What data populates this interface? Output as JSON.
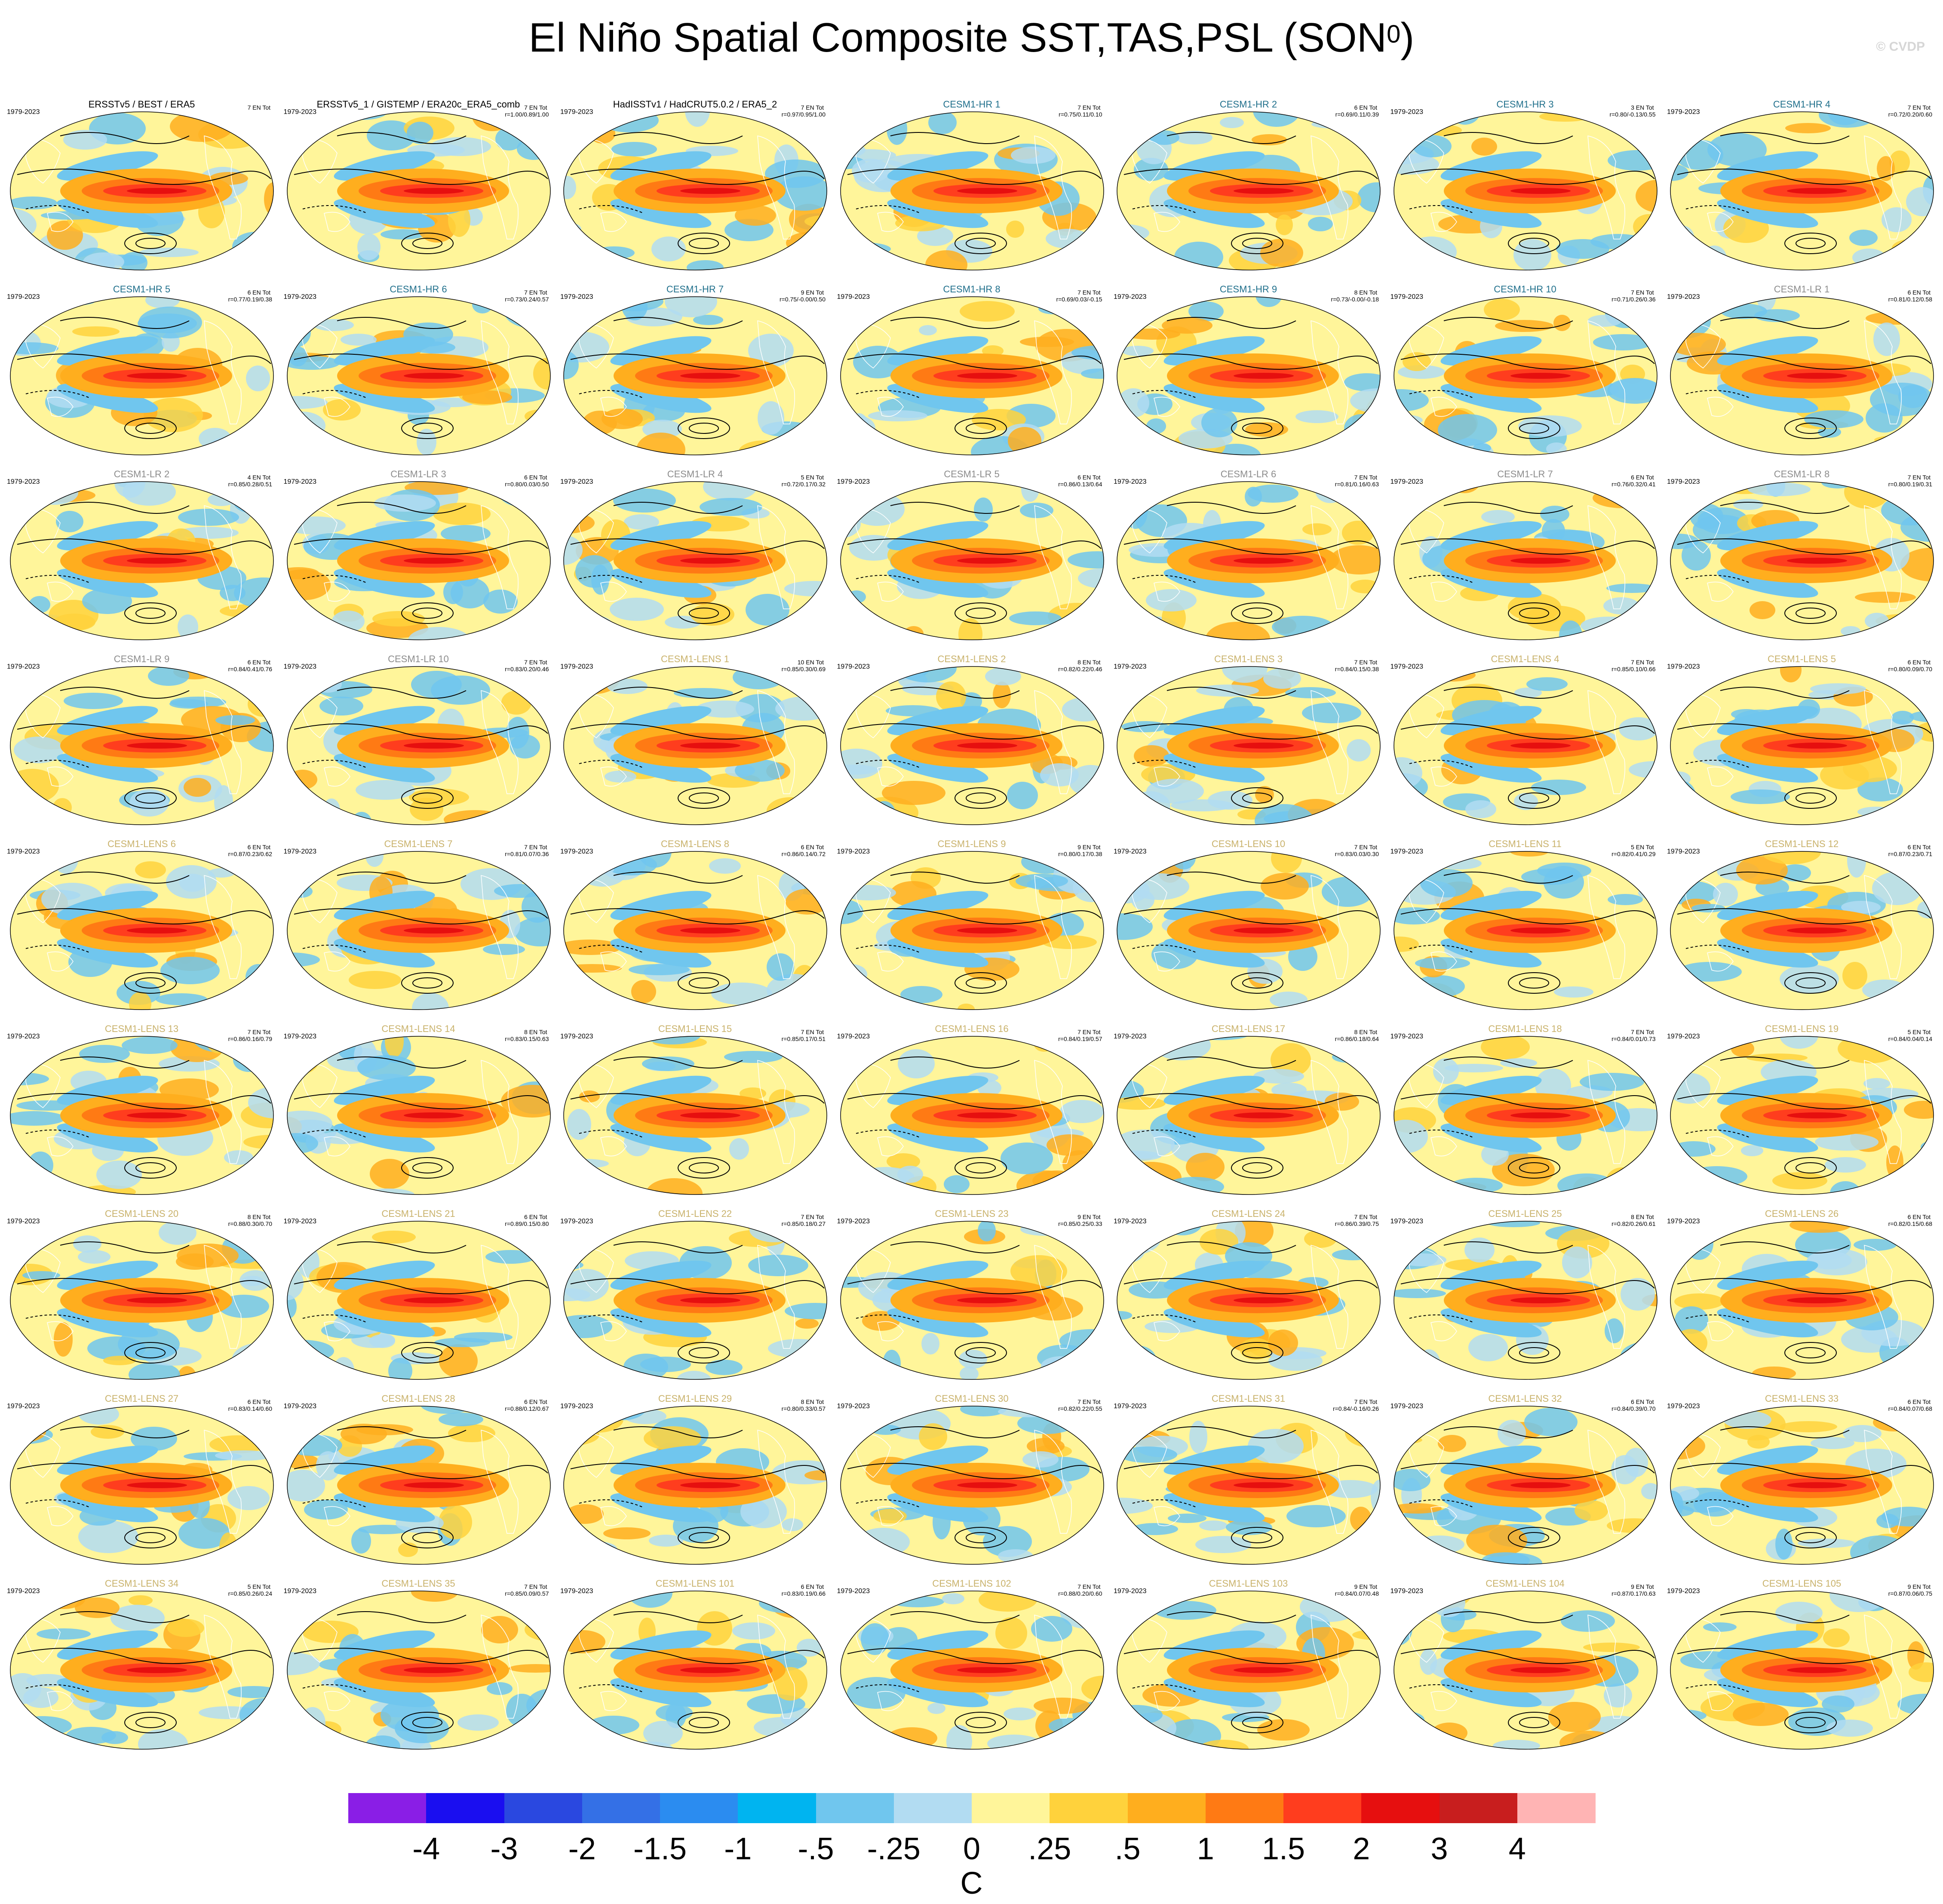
{
  "title": {
    "main": "El Niño Spatial Composite SST,TAS,PSL (SON",
    "superscript": "0",
    "close": ")"
  },
  "watermark": "© CVDP",
  "colors": {
    "obs_title": "#000000",
    "hr_title": "#1f6f8b",
    "lr_title": "#8c8c8c",
    "lens_title": "#c9b26b",
    "land_outline": "#ffffff",
    "contour": "#000000"
  },
  "panels": [
    {
      "title": "ERSSTv5 / BEST / ERA5",
      "years": "1979-2023",
      "count": "7 EN Tot",
      "corr": "",
      "group": "obs"
    },
    {
      "title": "ERSSTv5_1 / GISTEMP / ERA20c_ERA5_comb",
      "years": "1979-2023",
      "count": "7 EN Tot",
      "corr": "r=1.00/0.89/1.00",
      "group": "obs"
    },
    {
      "title": "HadISSTv1 / HadCRUT5.0.2 / ERA5_2",
      "years": "1979-2023",
      "count": "7 EN Tot",
      "corr": "r=0.97/0.95/1.00",
      "group": "obs"
    },
    {
      "title": "CESM1-HR 1",
      "years": "",
      "count": "7 EN Tot",
      "corr": "r=0.75/0.11/0.10",
      "group": "hr"
    },
    {
      "title": "CESM1-HR 2",
      "years": "",
      "count": "6 EN Tot",
      "corr": "r=0.69/0.11/0.39",
      "group": "hr"
    },
    {
      "title": "CESM1-HR 3",
      "years": "1979-2023",
      "count": "3 EN Tot",
      "corr": "r=0.80/-0.13/0.55",
      "group": "hr"
    },
    {
      "title": "CESM1-HR 4",
      "years": "1979-2023",
      "count": "7 EN Tot",
      "corr": "r=0.72/0.20/0.60",
      "group": "hr"
    },
    {
      "title": "CESM1-HR 5",
      "years": "1979-2023",
      "count": "6 EN Tot",
      "corr": "r=0.77/0.19/0.38",
      "group": "hr"
    },
    {
      "title": "CESM1-HR 6",
      "years": "1979-2023",
      "count": "7 EN Tot",
      "corr": "r=0.73/0.24/0.57",
      "group": "hr"
    },
    {
      "title": "CESM1-HR 7",
      "years": "1979-2023",
      "count": "9 EN Tot",
      "corr": "r=0.75/-0.00/0.50",
      "group": "hr"
    },
    {
      "title": "CESM1-HR 8",
      "years": "1979-2023",
      "count": "7 EN Tot",
      "corr": "r=0.69/0.03/-0.15",
      "group": "hr"
    },
    {
      "title": "CESM1-HR 9",
      "years": "1979-2023",
      "count": "8 EN Tot",
      "corr": "r=0.73/-0.00/-0.18",
      "group": "hr"
    },
    {
      "title": "CESM1-HR 10",
      "years": "1979-2023",
      "count": "7 EN Tot",
      "corr": "r=0.71/0.26/0.36",
      "group": "hr"
    },
    {
      "title": "CESM1-LR 1",
      "years": "1979-2023",
      "count": "6 EN Tot",
      "corr": "r=0.81/0.12/0.58",
      "group": "lr"
    },
    {
      "title": "CESM1-LR 2",
      "years": "1979-2023",
      "count": "4 EN Tot",
      "corr": "r=0.85/0.28/0.51",
      "group": "lr"
    },
    {
      "title": "CESM1-LR 3",
      "years": "1979-2023",
      "count": "6 EN Tot",
      "corr": "r=0.80/0.03/0.50",
      "group": "lr"
    },
    {
      "title": "CESM1-LR 4",
      "years": "1979-2023",
      "count": "5 EN Tot",
      "corr": "r=0.72/0.17/0.32",
      "group": "lr"
    },
    {
      "title": "CESM1-LR 5",
      "years": "1979-2023",
      "count": "6 EN Tot",
      "corr": "r=0.86/0.13/0.64",
      "group": "lr"
    },
    {
      "title": "CESM1-LR 6",
      "years": "1979-2023",
      "count": "7 EN Tot",
      "corr": "r=0.81/0.16/0.63",
      "group": "lr"
    },
    {
      "title": "CESM1-LR 7",
      "years": "1979-2023",
      "count": "6 EN Tot",
      "corr": "r=0.76/0.32/0.41",
      "group": "lr"
    },
    {
      "title": "CESM1-LR 8",
      "years": "1979-2023",
      "count": "7 EN Tot",
      "corr": "r=0.80/0.19/0.31",
      "group": "lr"
    },
    {
      "title": "CESM1-LR 9",
      "years": "1979-2023",
      "count": "6 EN Tot",
      "corr": "r=0.84/0.41/0.76",
      "group": "lr"
    },
    {
      "title": "CESM1-LR 10",
      "years": "1979-2023",
      "count": "7 EN Tot",
      "corr": "r=0.83/0.20/0.46",
      "group": "lr"
    },
    {
      "title": "CESM1-LENS 1",
      "years": "1979-2023",
      "count": "10 EN Tot",
      "corr": "r=0.85/0.30/0.69",
      "group": "lens"
    },
    {
      "title": "CESM1-LENS 2",
      "years": "1979-2023",
      "count": "8 EN Tot",
      "corr": "r=0.82/0.22/0.46",
      "group": "lens"
    },
    {
      "title": "CESM1-LENS 3",
      "years": "1979-2023",
      "count": "7 EN Tot",
      "corr": "r=0.84/0.15/0.38",
      "group": "lens"
    },
    {
      "title": "CESM1-LENS 4",
      "years": "1979-2023",
      "count": "7 EN Tot",
      "corr": "r=0.85/0.10/0.66",
      "group": "lens"
    },
    {
      "title": "CESM1-LENS 5",
      "years": "1979-2023",
      "count": "6 EN Tot",
      "corr": "r=0.80/0.09/0.70",
      "group": "lens"
    },
    {
      "title": "CESM1-LENS 6",
      "years": "1979-2023",
      "count": "6 EN Tot",
      "corr": "r=0.87/0.23/0.62",
      "group": "lens"
    },
    {
      "title": "CESM1-LENS 7",
      "years": "1979-2023",
      "count": "7 EN Tot",
      "corr": "r=0.81/0.07/0.36",
      "group": "lens"
    },
    {
      "title": "CESM1-LENS 8",
      "years": "1979-2023",
      "count": "6 EN Tot",
      "corr": "r=0.86/0.14/0.72",
      "group": "lens"
    },
    {
      "title": "CESM1-LENS 9",
      "years": "1979-2023",
      "count": "9 EN Tot",
      "corr": "r=0.80/0.17/0.38",
      "group": "lens"
    },
    {
      "title": "CESM1-LENS 10",
      "years": "1979-2023",
      "count": "7 EN Tot",
      "corr": "r=0.83/0.03/0.30",
      "group": "lens"
    },
    {
      "title": "CESM1-LENS 11",
      "years": "1979-2023",
      "count": "5 EN Tot",
      "corr": "r=0.82/0.41/0.29",
      "group": "lens"
    },
    {
      "title": "CESM1-LENS 12",
      "years": "1979-2023",
      "count": "6 EN Tot",
      "corr": "r=0.87/0.23/0.71",
      "group": "lens"
    },
    {
      "title": "CESM1-LENS 13",
      "years": "1979-2023",
      "count": "7 EN Tot",
      "corr": "r=0.86/0.16/0.79",
      "group": "lens"
    },
    {
      "title": "CESM1-LENS 14",
      "years": "1979-2023",
      "count": "8 EN Tot",
      "corr": "r=0.83/0.15/0.63",
      "group": "lens"
    },
    {
      "title": "CESM1-LENS 15",
      "years": "1979-2023",
      "count": "7 EN Tot",
      "corr": "r=0.85/0.17/0.51",
      "group": "lens"
    },
    {
      "title": "CESM1-LENS 16",
      "years": "1979-2023",
      "count": "7 EN Tot",
      "corr": "r=0.84/0.19/0.57",
      "group": "lens"
    },
    {
      "title": "CESM1-LENS 17",
      "years": "1979-2023",
      "count": "8 EN Tot",
      "corr": "r=0.86/0.18/0.64",
      "group": "lens"
    },
    {
      "title": "CESM1-LENS 18",
      "years": "1979-2023",
      "count": "7 EN Tot",
      "corr": "r=0.84/0.01/0.73",
      "group": "lens"
    },
    {
      "title": "CESM1-LENS 19",
      "years": "1979-2023",
      "count": "5 EN Tot",
      "corr": "r=0.84/0.04/0.14",
      "group": "lens"
    },
    {
      "title": "CESM1-LENS 20",
      "years": "1979-2023",
      "count": "8 EN Tot",
      "corr": "r=0.88/0.30/0.70",
      "group": "lens"
    },
    {
      "title": "CESM1-LENS 21",
      "years": "1979-2023",
      "count": "6 EN Tot",
      "corr": "r=0.89/0.15/0.80",
      "group": "lens"
    },
    {
      "title": "CESM1-LENS 22",
      "years": "1979-2023",
      "count": "7 EN Tot",
      "corr": "r=0.85/0.18/0.27",
      "group": "lens"
    },
    {
      "title": "CESM1-LENS 23",
      "years": "1979-2023",
      "count": "9 EN Tot",
      "corr": "r=0.85/0.25/0.33",
      "group": "lens"
    },
    {
      "title": "CESM1-LENS 24",
      "years": "1979-2023",
      "count": "7 EN Tot",
      "corr": "r=0.86/0.39/0.75",
      "group": "lens"
    },
    {
      "title": "CESM1-LENS 25",
      "years": "1979-2023",
      "count": "8 EN Tot",
      "corr": "r=0.82/0.26/0.61",
      "group": "lens"
    },
    {
      "title": "CESM1-LENS 26",
      "years": "1979-2023",
      "count": "6 EN Tot",
      "corr": "r=0.82/0.15/0.68",
      "group": "lens"
    },
    {
      "title": "CESM1-LENS 27",
      "years": "1979-2023",
      "count": "6 EN Tot",
      "corr": "r=0.83/0.14/0.60",
      "group": "lens"
    },
    {
      "title": "CESM1-LENS 28",
      "years": "1979-2023",
      "count": "6 EN Tot",
      "corr": "r=0.88/0.12/0.67",
      "group": "lens"
    },
    {
      "title": "CESM1-LENS 29",
      "years": "1979-2023",
      "count": "8 EN Tot",
      "corr": "r=0.80/0.33/0.57",
      "group": "lens"
    },
    {
      "title": "CESM1-LENS 30",
      "years": "1979-2023",
      "count": "7 EN Tot",
      "corr": "r=0.82/0.22/0.55",
      "group": "lens"
    },
    {
      "title": "CESM1-LENS 31",
      "years": "1979-2023",
      "count": "7 EN Tot",
      "corr": "r=0.84/-0.16/0.26",
      "group": "lens"
    },
    {
      "title": "CESM1-LENS 32",
      "years": "1979-2023",
      "count": "6 EN Tot",
      "corr": "r=0.84/0.39/0.70",
      "group": "lens"
    },
    {
      "title": "CESM1-LENS 33",
      "years": "1979-2023",
      "count": "6 EN Tot",
      "corr": "r=0.84/0.07/0.68",
      "group": "lens"
    },
    {
      "title": "CESM1-LENS 34",
      "years": "1979-2023",
      "count": "5 EN Tot",
      "corr": "r=0.85/0.26/0.24",
      "group": "lens"
    },
    {
      "title": "CESM1-LENS 35",
      "years": "1979-2023",
      "count": "7 EN Tot",
      "corr": "r=0.85/0.09/0.57",
      "group": "lens"
    },
    {
      "title": "CESM1-LENS 101",
      "years": "1979-2023",
      "count": "6 EN Tot",
      "corr": "r=0.83/0.19/0.66",
      "group": "lens"
    },
    {
      "title": "CESM1-LENS 102",
      "years": "1979-2023",
      "count": "7 EN Tot",
      "corr": "r=0.88/0.20/0.60",
      "group": "lens"
    },
    {
      "title": "CESM1-LENS 103",
      "years": "1979-2023",
      "count": "9 EN Tot",
      "corr": "r=0.84/0.07/0.48",
      "group": "lens"
    },
    {
      "title": "CESM1-LENS 104",
      "years": "1979-2023",
      "count": "9 EN Tot",
      "corr": "r=0.87/0.17/0.63",
      "group": "lens"
    },
    {
      "title": "CESM1-LENS 105",
      "years": "1979-2023",
      "count": "9 EN Tot",
      "corr": "r=0.87/0.06/0.75",
      "group": "lens"
    }
  ],
  "colorbar": {
    "colors": [
      "#8a1ee6",
      "#1a0ef0",
      "#2a48e0",
      "#3470e6",
      "#2b8cf0",
      "#00b4f0",
      "#70c6ee",
      "#b2dcf2",
      "#fff59a",
      "#ffd23c",
      "#ffae1e",
      "#ff7a14",
      "#ff3d1e",
      "#e60f0f",
      "#c81e1e",
      "#ffb4b4"
    ],
    "labels": [
      "-4",
      "-3",
      "-2",
      "-1.5",
      "-1",
      "-.5",
      "-.25",
      "0",
      ".25",
      ".5",
      "1",
      "1.5",
      "2",
      "3",
      "4"
    ],
    "units": "C"
  }
}
